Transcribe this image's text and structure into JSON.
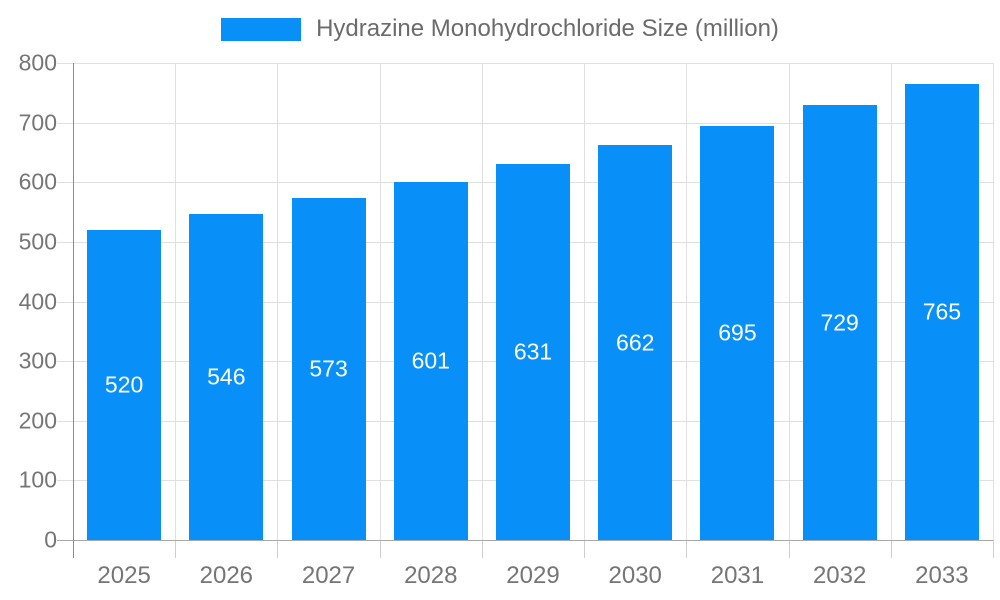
{
  "chart_data": {
    "type": "bar",
    "title": "Hydrazine Monohydrochloride Size (million)",
    "categories": [
      "2025",
      "2026",
      "2027",
      "2028",
      "2029",
      "2030",
      "2031",
      "2032",
      "2033"
    ],
    "values": [
      520,
      546,
      573,
      601,
      631,
      662,
      695,
      729,
      765
    ],
    "xlabel": "",
    "ylabel": "",
    "ylim": [
      0,
      800
    ],
    "ytick_step": 100,
    "yticks": [
      0,
      100,
      200,
      300,
      400,
      500,
      600,
      700,
      800
    ],
    "grid": true,
    "legend_position": "top",
    "colors": {
      "bar": "#0990f8",
      "bar_value_label": "#ffffff",
      "gridline": "#e0e0e0",
      "axis_label": "#757575",
      "legend_text": "#6b6b6b",
      "y_axis_line": "#8a8a8a",
      "baseline": "#a8a8a8"
    }
  }
}
